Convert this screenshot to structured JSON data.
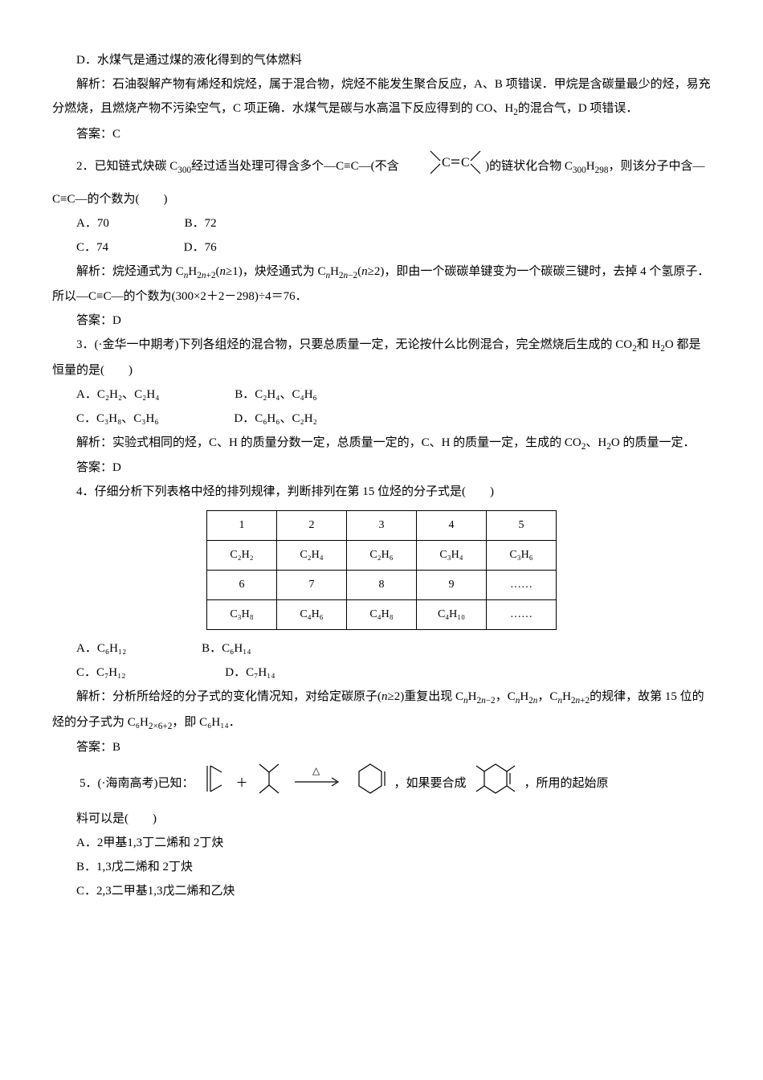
{
  "page": {
    "background": "#ffffff",
    "text_color": "#000000",
    "font_family": "SimSun",
    "font_size_pt": 11,
    "line_height": 2
  },
  "paragraphs": {
    "p_d": "D．水煤气是通过煤的液化得到的气体燃料",
    "p_exp1a": "解析：石油裂解产物有烯烃和烷烃，属于混合物，烷烃不能发生聚合反应，A、B 项错误．甲烷是含碳量最少的烃，易充分燃烧，且燃烧产物不污染空气，C 项正确．水煤气是碳与水高温下反应得到的 CO、H",
    "p_exp1b": "的混合气，D 项错误．",
    "ans_c": "答案：C",
    "q2a": "2．已知链式炔碳 C",
    "q2b": "经过适当处理可得含多个—C≡C—(不含",
    "q2c": ")的链状化合物 C",
    "q2d": "，则该分子中含—C≡C—的个数为(　　)",
    "q2_optA": "A．70",
    "q2_optB": "B．72",
    "q2_optC": "C．74",
    "q2_optD": "D．76",
    "q2_exp_a": "解析：烷烃通式为 C",
    "q2_exp_b": "(",
    "q2_exp_c": "≥1)，炔烃通式为 C",
    "q2_exp_d": "(",
    "q2_exp_e": "≥2)，即由一个碳碳单键变为一个碳碳三键时，去掉 4 个氢原子．所以—C≡C—的个数为(300×2＋2－298)÷4＝76．",
    "ans_d": "答案：D",
    "q3a": "3．(·金华一中期考)下列各组烃的混合物，只要总质量一定，无论按什么比例混合，完全燃烧后生成的 CO",
    "q3b": "和 H",
    "q3c": "O 都是恒量的是(　　)",
    "q3_exp": "解析：实验式相同的烃，C、H 的质量分数一定，总质量一定的，C、H 的质量一定，生成的 CO",
    "q3_exp_b": "、H",
    "q3_exp_c": "O 的质量一定．",
    "q4": "4．仔细分析下列表格中烃的排列规律，判断排列在第 15 位烃的分子式是(　　)",
    "q4_optA": "A．C₆H₁₂",
    "q4_optB": "B．C₆H₁₄",
    "q4_optC": "C．C₇H₁₂",
    "q4_optD": "D．C₇H₁₄",
    "q4_exp_a": "解析：分析所给烃的分子式的变化情况知，对给定碳原子(",
    "q4_exp_b": "≥2)重复出现 C",
    "q4_exp_c": "，C",
    "q4_exp_d": "，C",
    "q4_exp_e": "的规律，故第 15 位的烃的分子式为 C₆H",
    "q4_exp_f": "，即 C₆H₁₄．",
    "ans_b": "答案：B",
    "q5_a": "5．(·海南高考)已知：",
    "q5_b": "，如果要合成",
    "q5_c": "，所用的起始原",
    "q5_d": "料可以是(　　)",
    "q5_optA": "A．2­甲基­1,3­丁二烯和 2­丁炔",
    "q5_optB": "B．1,3­戊二烯和 2­丁炔",
    "q5_optC": "C．2,3­二甲基­1,3­戊二烯和乙炔"
  },
  "q3_options": {
    "A_l": "A．C₂H₂、C₂H₄",
    "A_r": "B．C₂H₄、C₄H₆",
    "B_l": "C．C₃H₈、C₃H₆",
    "B_r": "D．C₆H₆、C₂H₂"
  },
  "table": {
    "rows": [
      [
        "1",
        "2",
        "3",
        "4",
        "5"
      ],
      [
        "C₂H₂",
        "C₂H₄",
        "C₂H₆",
        "C₃H₄",
        "C₃H₆"
      ],
      [
        "6",
        "7",
        "8",
        "9",
        "……"
      ],
      [
        "C₃H₈",
        "C₄H₆",
        "C₄H₈",
        "C₄H₁₀",
        "……"
      ]
    ],
    "border_color": "#000000",
    "cell_padding": "4px 18px",
    "font_size": 14
  },
  "svg": {
    "stroke": "#000000",
    "triangle_label": "△",
    "plus": "＋",
    "arrow": "→"
  }
}
